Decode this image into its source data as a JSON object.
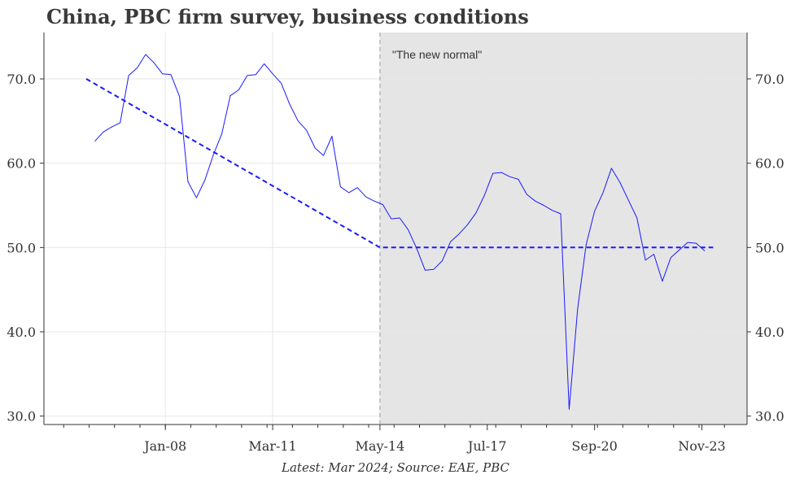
{
  "title": "China, PBC firm survey, business conditions",
  "caption": "Latest: Mar 2024; Source: EAE, PBC",
  "annotation": "\"The new normal\"",
  "colors": {
    "series": "#1a1aff",
    "trend": "#1a1aff",
    "shade": "#e5e5e5",
    "grid": "#e6e6e6",
    "text": "#333333"
  },
  "chart_data": {
    "type": "line",
    "title": "China, PBC firm survey, business conditions",
    "xlabel": "",
    "ylabel": "",
    "x_tick_labels": [
      "Jan-08",
      "Mar-11",
      "May-14",
      "Jul-17",
      "Sep-20",
      "Nov-23"
    ],
    "x_tick_dates": [
      "2008-01",
      "2011-03",
      "2014-05",
      "2017-07",
      "2020-09",
      "2023-11"
    ],
    "y_ticks": [
      30.0,
      40.0,
      50.0,
      60.0,
      70.0
    ],
    "y_tick_labels": [
      "30.0",
      "40.0",
      "50.0",
      "60.0",
      "70.0"
    ],
    "xlim": [
      "2004-06",
      "2025-03"
    ],
    "ylim": [
      29,
      75.5
    ],
    "grid": true,
    "shaded_region": {
      "from": "2014-05",
      "to": "2025-03",
      "label": "\"The new normal\""
    },
    "vline": "2014-05",
    "series": [
      {
        "values": [
          [
            "2005-12",
            62.6
          ],
          [
            "2006-03",
            63.7
          ],
          [
            "2006-06",
            64.3
          ],
          [
            "2006-09",
            64.8
          ],
          [
            "2006-12",
            70.4
          ],
          [
            "2007-03",
            71.3
          ],
          [
            "2007-06",
            72.9
          ],
          [
            "2007-09",
            71.9
          ],
          [
            "2007-12",
            70.6
          ],
          [
            "2008-03",
            70.5
          ],
          [
            "2008-06",
            67.9
          ],
          [
            "2008-09",
            57.8
          ],
          [
            "2008-12",
            55.9
          ],
          [
            "2009-03",
            58.0
          ],
          [
            "2009-06",
            61.0
          ],
          [
            "2009-09",
            63.5
          ],
          [
            "2009-12",
            68.0
          ],
          [
            "2010-03",
            68.7
          ],
          [
            "2010-06",
            70.4
          ],
          [
            "2010-09",
            70.5
          ],
          [
            "2010-12",
            71.8
          ],
          [
            "2011-03",
            70.6
          ],
          [
            "2011-06",
            69.5
          ],
          [
            "2011-09",
            67.0
          ],
          [
            "2011-12",
            65.0
          ],
          [
            "2012-03",
            63.9
          ],
          [
            "2012-06",
            61.8
          ],
          [
            "2012-09",
            60.9
          ],
          [
            "2012-12",
            63.2
          ],
          [
            "2013-03",
            57.2
          ],
          [
            "2013-06",
            56.5
          ],
          [
            "2013-09",
            57.1
          ],
          [
            "2013-12",
            56.0
          ],
          [
            "2014-03",
            55.5
          ],
          [
            "2014-06",
            55.1
          ],
          [
            "2014-09",
            53.4
          ],
          [
            "2014-12",
            53.5
          ],
          [
            "2015-03",
            52.1
          ],
          [
            "2015-06",
            49.9
          ],
          [
            "2015-09",
            47.3
          ],
          [
            "2015-12",
            47.4
          ],
          [
            "2016-03",
            48.4
          ],
          [
            "2016-06",
            50.7
          ],
          [
            "2016-09",
            51.6
          ],
          [
            "2016-12",
            52.7
          ],
          [
            "2017-03",
            54.1
          ],
          [
            "2017-06",
            56.2
          ],
          [
            "2017-09",
            58.8
          ],
          [
            "2017-12",
            58.9
          ],
          [
            "2018-03",
            58.4
          ],
          [
            "2018-06",
            58.1
          ],
          [
            "2018-09",
            56.3
          ],
          [
            "2018-12",
            55.5
          ],
          [
            "2019-03",
            55.0
          ],
          [
            "2019-06",
            54.4
          ],
          [
            "2019-09",
            54.0
          ],
          [
            "2019-12",
            30.8
          ],
          [
            "2020-03",
            42.7
          ],
          [
            "2020-06",
            50.3
          ],
          [
            "2020-09",
            54.3
          ],
          [
            "2020-12",
            56.5
          ],
          [
            "2021-03",
            59.4
          ],
          [
            "2021-06",
            57.7
          ],
          [
            "2021-09",
            55.6
          ],
          [
            "2021-12",
            53.5
          ],
          [
            "2022-03",
            48.5
          ],
          [
            "2022-06",
            49.2
          ],
          [
            "2022-09",
            46.0
          ],
          [
            "2022-12",
            48.8
          ],
          [
            "2023-03",
            49.7
          ],
          [
            "2023-06",
            50.6
          ],
          [
            "2023-09",
            50.5
          ],
          [
            "2023-12",
            49.6
          ]
        ]
      },
      {
        "style": "dashed",
        "values": [
          [
            "2005-09",
            70.0
          ],
          [
            "2014-05",
            50.0
          ],
          [
            "2024-03",
            50.0
          ]
        ]
      }
    ]
  }
}
